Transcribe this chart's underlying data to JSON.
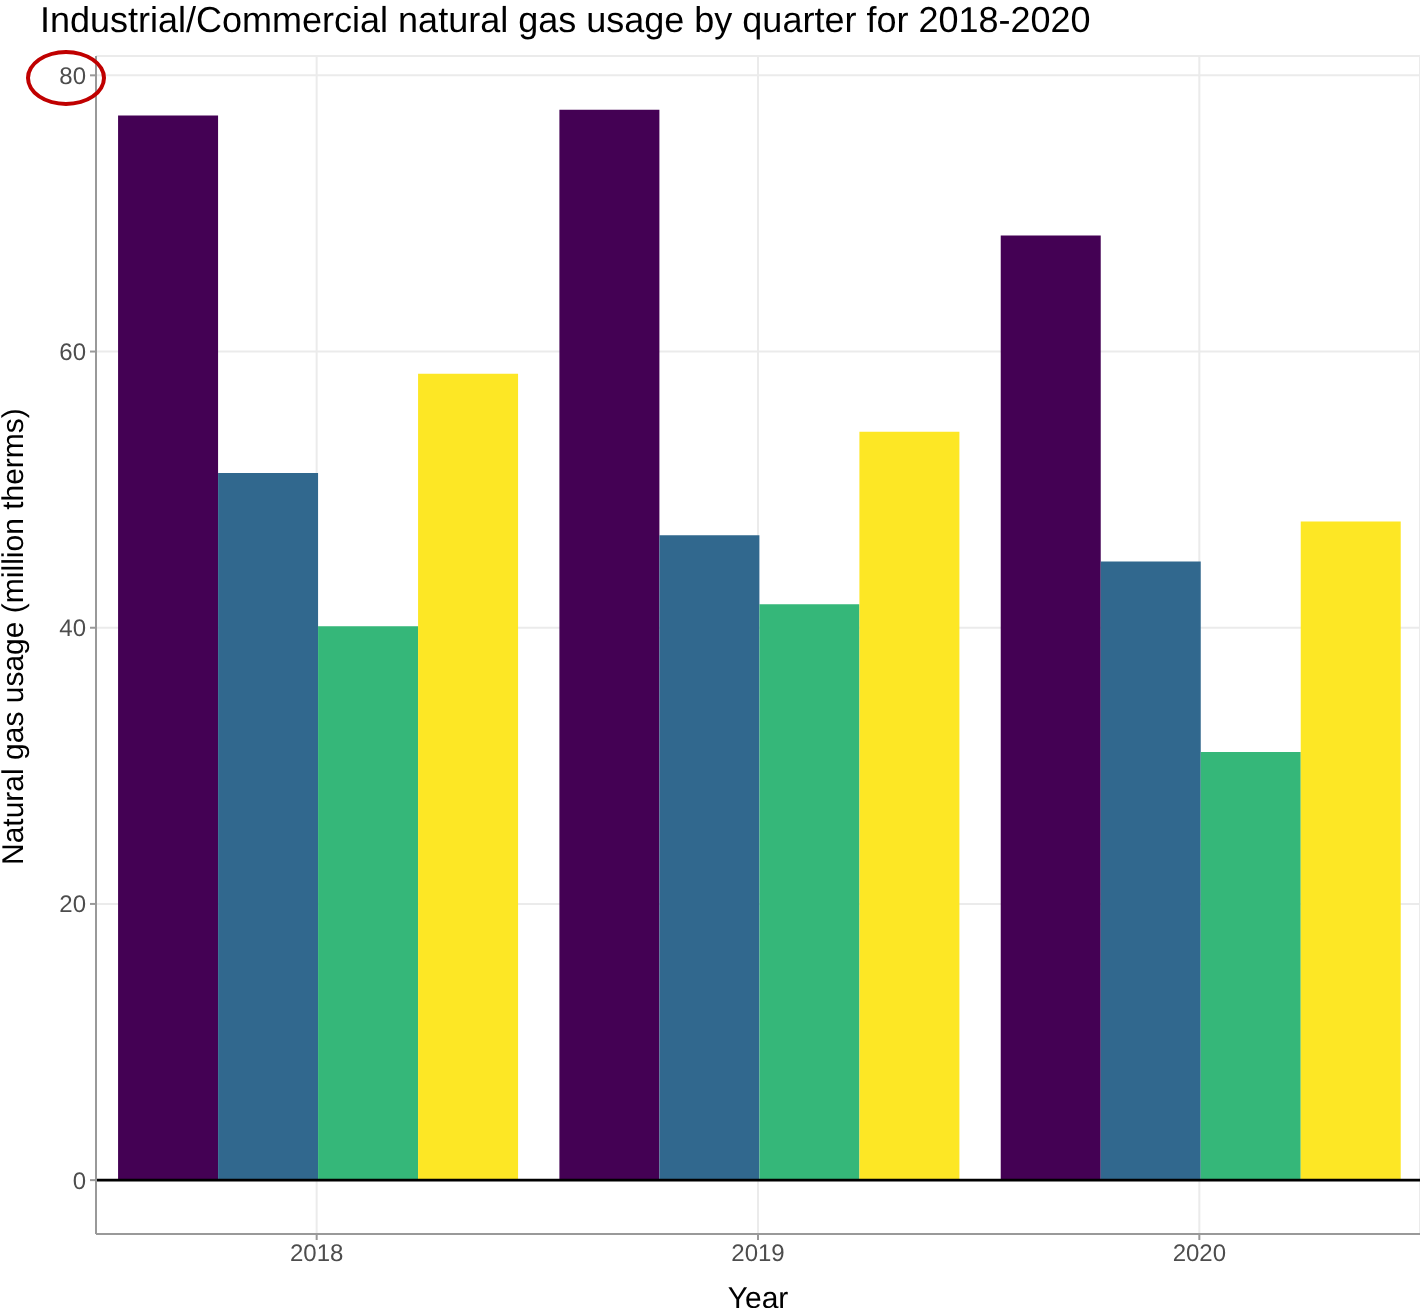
{
  "chart_data": {
    "type": "bar",
    "title": "Industrial/Commercial natural gas usage by quarter for 2018-2020",
    "xlabel": "Year",
    "ylabel": "Natural gas usage (million therms)",
    "categories": [
      "2018",
      "2019",
      "2020"
    ],
    "series": [
      {
        "color": "#440154",
        "values": [
          77.1,
          77.5,
          68.4
        ]
      },
      {
        "color": "#31688e",
        "values": [
          51.2,
          46.7,
          44.8
        ]
      },
      {
        "color": "#35b779",
        "values": [
          40.1,
          41.7,
          31.0
        ]
      },
      {
        "color": "#fde725",
        "values": [
          58.4,
          54.2,
          47.7
        ]
      }
    ],
    "ylim": [
      -3.9,
      81.4
    ],
    "yticks": [
      0,
      20,
      40,
      60,
      80
    ],
    "grid": true,
    "legend": false,
    "ref_lines": [
      {
        "axis": "y",
        "value": 0,
        "color": "#000000"
      }
    ]
  }
}
